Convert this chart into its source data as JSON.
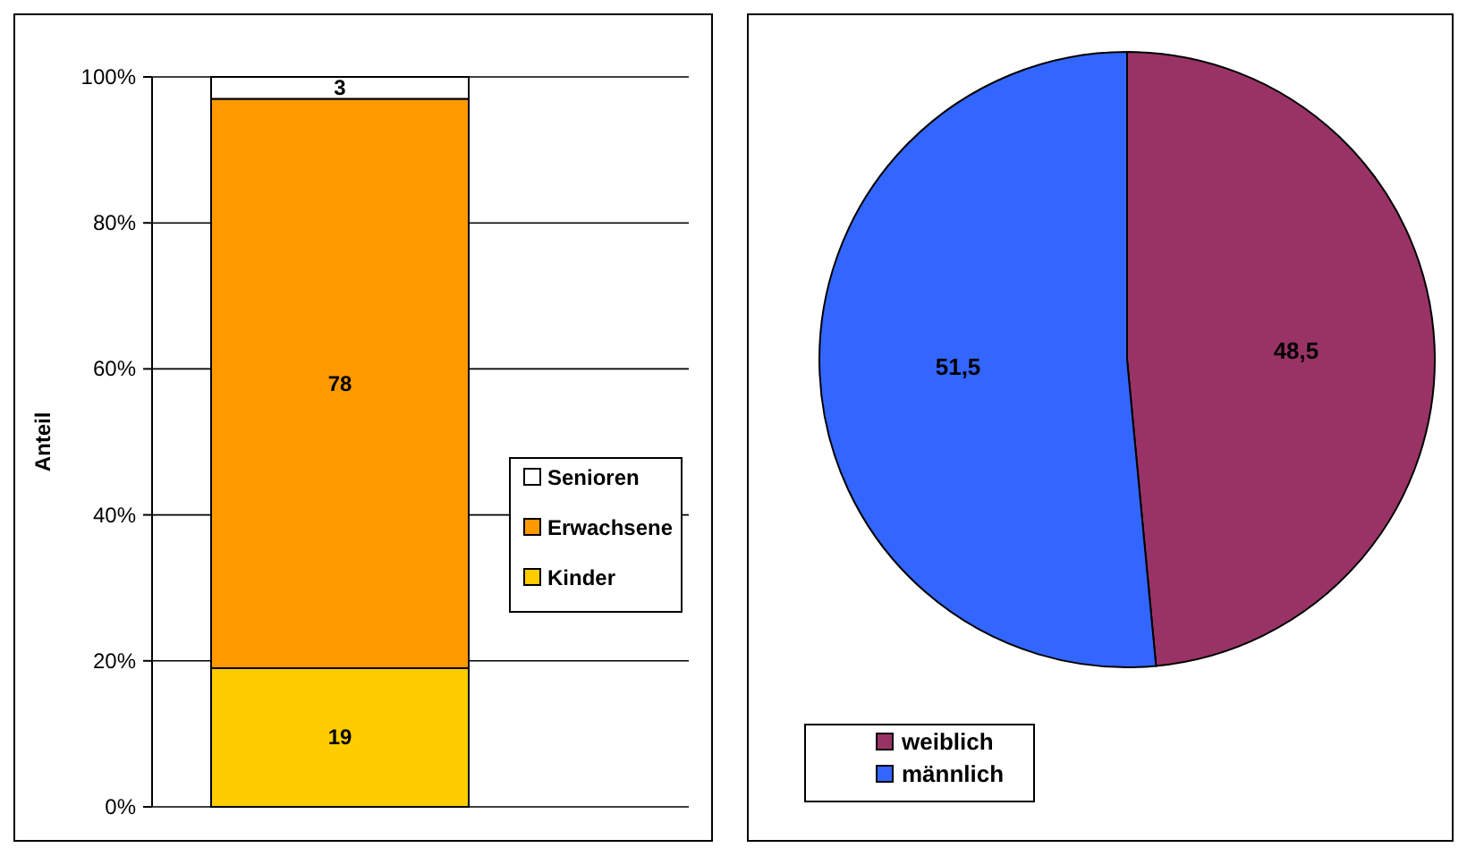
{
  "chart_data": [
    {
      "type": "bar",
      "stacked": true,
      "categories": [
        null
      ],
      "ylabel": "Anteil",
      "ylim": [
        0,
        100
      ],
      "yticks": [
        {
          "value": 0,
          "label": "0%"
        },
        {
          "value": 20,
          "label": "20%"
        },
        {
          "value": 40,
          "label": "40%"
        },
        {
          "value": 60,
          "label": "60%"
        },
        {
          "value": 80,
          "label": "80%"
        },
        {
          "value": 100,
          "label": "100%"
        }
      ],
      "grid": "y",
      "tick_labels": "y",
      "data_labels": true,
      "legend": "right",
      "series": [
        {
          "name": "Kinder",
          "color": "#ffcc00",
          "values": [
            19
          ]
        },
        {
          "name": "Erwachsene",
          "color": "#ff9900",
          "values": [
            78
          ]
        },
        {
          "name": "Senioren",
          "color": "#ffffff",
          "values": [
            3
          ]
        }
      ]
    },
    {
      "type": "pie",
      "categories": [
        "weiblich",
        "männlich"
      ],
      "values": [
        48.5,
        51.5
      ],
      "colors": [
        "#993366",
        "#3366ff"
      ],
      "value_labels": [
        "48,5",
        "51,5"
      ],
      "legend": "bottom left"
    }
  ]
}
